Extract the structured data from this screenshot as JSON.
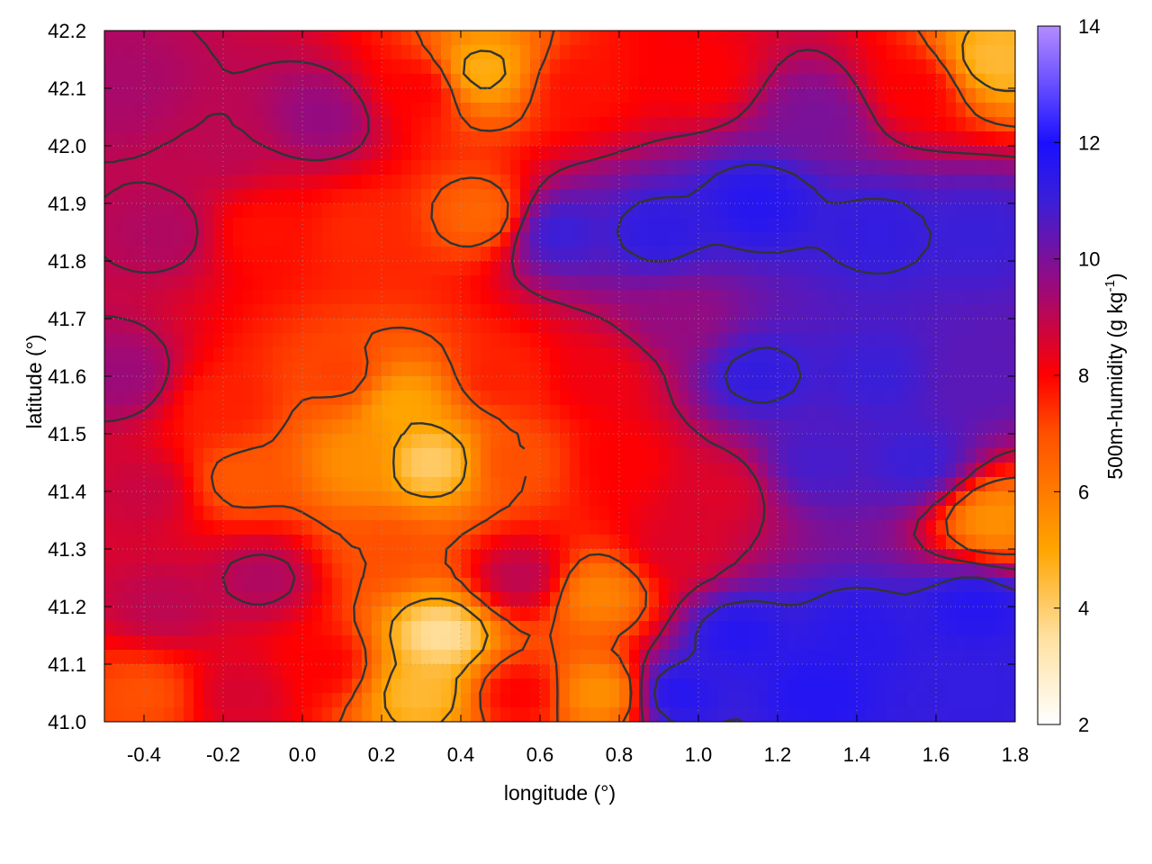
{
  "chart_data": {
    "type": "heatmap",
    "title": "",
    "xlabel": "longitude (°)",
    "ylabel": "latitude (°)",
    "colorbar_label": "500m-humidity (g kg",
    "colorbar_label_superscript": "-1",
    "colorbar_label_suffix": ")",
    "xlim": [
      -0.5,
      1.8
    ],
    "ylim": [
      41.0,
      42.2
    ],
    "zlim": [
      2,
      14
    ],
    "x_ticks": [
      -0.4,
      -0.2,
      0.0,
      0.2,
      0.4,
      0.6,
      0.8,
      1.0,
      1.2,
      1.4,
      1.6,
      1.8
    ],
    "x_tick_labels": [
      "-0.4",
      "-0.2",
      "0.0",
      "0.2",
      "0.4",
      "0.6",
      "0.8",
      "1.0",
      "1.2",
      "1.4",
      "1.6",
      "1.8"
    ],
    "y_ticks": [
      41.0,
      41.1,
      41.2,
      41.3,
      41.4,
      41.5,
      41.6,
      41.7,
      41.8,
      41.9,
      42.0,
      42.1,
      42.2
    ],
    "y_tick_labels": [
      "41.0",
      "41.1",
      "41.2",
      "41.3",
      "41.4",
      "41.5",
      "41.6",
      "41.7",
      "41.8",
      "41.9",
      "42.0",
      "42.1",
      "42.2"
    ],
    "z_ticks": [
      2,
      4,
      6,
      8,
      10,
      12,
      14
    ],
    "z_tick_labels": [
      "2",
      "4",
      "6",
      "8",
      "10",
      "12",
      "14"
    ],
    "grid": true,
    "colormap": [
      {
        "value": 2,
        "color": "#ffffff"
      },
      {
        "value": 3.5,
        "color": "#ffe0a0"
      },
      {
        "value": 5,
        "color": "#ffa500"
      },
      {
        "value": 7,
        "color": "#ff5000"
      },
      {
        "value": 8,
        "color": "#ff0000"
      },
      {
        "value": 9.5,
        "color": "#9b0a7a"
      },
      {
        "value": 11,
        "color": "#3a1fd8"
      },
      {
        "value": 12,
        "color": "#1a10ff"
      },
      {
        "value": 14,
        "color": "#b48cff"
      }
    ],
    "contour_color": "#333333",
    "field_samples": [
      {
        "lon": -0.45,
        "lat": 42.1,
        "value": 9.3
      },
      {
        "lon": -0.2,
        "lat": 42.0,
        "value": 9.0
      },
      {
        "lon": 0.05,
        "lat": 42.05,
        "value": 9.6
      },
      {
        "lon": 0.3,
        "lat": 42.1,
        "value": 8.0
      },
      {
        "lon": 0.45,
        "lat": 42.13,
        "value": 4.8
      },
      {
        "lon": 0.7,
        "lat": 42.1,
        "value": 7.8
      },
      {
        "lon": 1.0,
        "lat": 42.12,
        "value": 8.0
      },
      {
        "lon": 1.3,
        "lat": 42.05,
        "value": 10.0
      },
      {
        "lon": 1.55,
        "lat": 42.1,
        "value": 8.0
      },
      {
        "lon": 1.75,
        "lat": 42.15,
        "value": 4.5
      },
      {
        "lon": -0.35,
        "lat": 41.85,
        "value": 9.2
      },
      {
        "lon": -0.1,
        "lat": 41.85,
        "value": 7.8
      },
      {
        "lon": 0.15,
        "lat": 41.85,
        "value": 7.5
      },
      {
        "lon": 0.45,
        "lat": 41.88,
        "value": 6.5
      },
      {
        "lon": 0.65,
        "lat": 41.85,
        "value": 11.0
      },
      {
        "lon": 0.9,
        "lat": 41.85,
        "value": 11.3
      },
      {
        "lon": 1.15,
        "lat": 41.9,
        "value": 11.6
      },
      {
        "lon": 1.45,
        "lat": 41.85,
        "value": 11.2
      },
      {
        "lon": 1.7,
        "lat": 41.85,
        "value": 11.0
      },
      {
        "lon": -0.45,
        "lat": 41.6,
        "value": 9.5
      },
      {
        "lon": -0.2,
        "lat": 41.55,
        "value": 7.6
      },
      {
        "lon": 0.1,
        "lat": 41.6,
        "value": 7.2
      },
      {
        "lon": 0.25,
        "lat": 41.55,
        "value": 5.0
      },
      {
        "lon": 0.5,
        "lat": 41.6,
        "value": 7.6
      },
      {
        "lon": 0.75,
        "lat": 41.6,
        "value": 8.2
      },
      {
        "lon": 0.95,
        "lat": 41.7,
        "value": 9.6
      },
      {
        "lon": 1.15,
        "lat": 41.6,
        "value": 11.2
      },
      {
        "lon": 1.45,
        "lat": 41.6,
        "value": 11.0
      },
      {
        "lon": 1.7,
        "lat": 41.6,
        "value": 10.5
      },
      {
        "lon": -0.4,
        "lat": 41.4,
        "value": 8.8
      },
      {
        "lon": -0.15,
        "lat": 41.42,
        "value": 6.8
      },
      {
        "lon": 0.15,
        "lat": 41.45,
        "value": 5.5
      },
      {
        "lon": 0.32,
        "lat": 41.45,
        "value": 4.0
      },
      {
        "lon": 0.55,
        "lat": 41.45,
        "value": 7.0
      },
      {
        "lon": 0.8,
        "lat": 41.45,
        "value": 8.0
      },
      {
        "lon": 1.05,
        "lat": 41.4,
        "value": 8.5
      },
      {
        "lon": 1.3,
        "lat": 41.45,
        "value": 10.8
      },
      {
        "lon": 1.55,
        "lat": 41.45,
        "value": 11.0
      },
      {
        "lon": 1.75,
        "lat": 41.35,
        "value": 5.5
      },
      {
        "lon": -0.35,
        "lat": 41.2,
        "value": 9.0
      },
      {
        "lon": -0.1,
        "lat": 41.25,
        "value": 9.2
      },
      {
        "lon": 0.2,
        "lat": 41.3,
        "value": 7.0
      },
      {
        "lon": 0.35,
        "lat": 41.15,
        "value": 3.5
      },
      {
        "lon": 0.55,
        "lat": 41.25,
        "value": 9.0
      },
      {
        "lon": 0.75,
        "lat": 41.22,
        "value": 5.8
      },
      {
        "lon": 0.95,
        "lat": 41.3,
        "value": 8.5
      },
      {
        "lon": 1.1,
        "lat": 41.15,
        "value": 11.6
      },
      {
        "lon": 1.4,
        "lat": 41.15,
        "value": 11.5
      },
      {
        "lon": 1.7,
        "lat": 41.2,
        "value": 11.6
      },
      {
        "lon": -0.4,
        "lat": 41.05,
        "value": 7.0
      },
      {
        "lon": -0.15,
        "lat": 41.05,
        "value": 8.6
      },
      {
        "lon": 0.05,
        "lat": 41.1,
        "value": 8.0
      },
      {
        "lon": 0.3,
        "lat": 41.05,
        "value": 4.5
      },
      {
        "lon": 0.55,
        "lat": 41.05,
        "value": 8.0
      },
      {
        "lon": 0.75,
        "lat": 41.05,
        "value": 5.5
      },
      {
        "lon": 0.95,
        "lat": 41.05,
        "value": 11.6
      },
      {
        "lon": 1.3,
        "lat": 41.05,
        "value": 11.7
      },
      {
        "lon": 1.7,
        "lat": 41.05,
        "value": 11.2
      }
    ]
  }
}
